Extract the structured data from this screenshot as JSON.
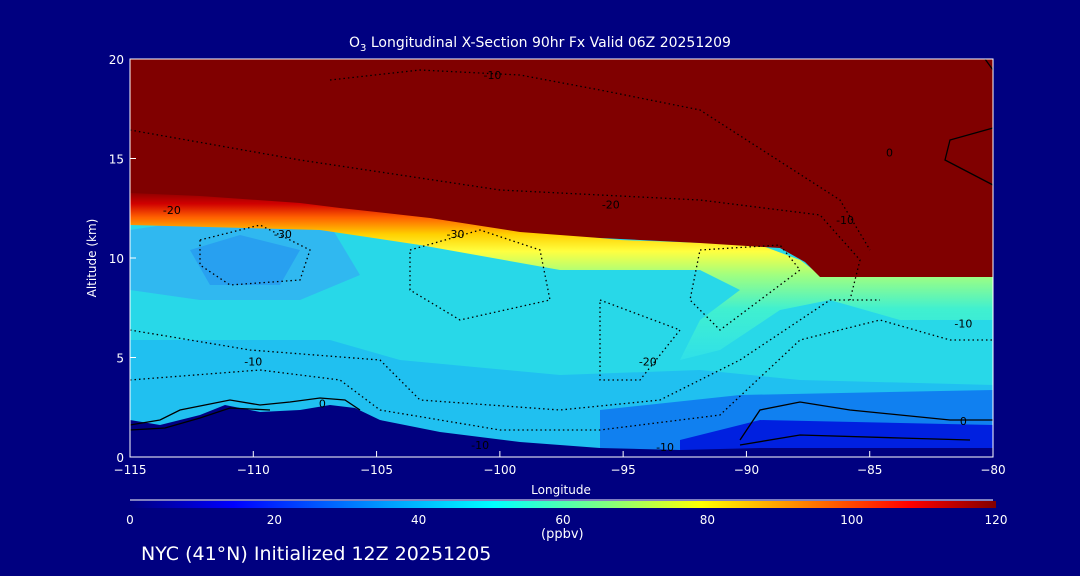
{
  "chart_data": {
    "type": "heatmap",
    "title_prefix": "O",
    "title_subscript": "3",
    "title_rest": " Longitudinal X-Section 90hr  Fx Valid 06Z 20251209",
    "xlabel": "Longitude",
    "ylabel": "Altitude (km)",
    "xlim": [
      -115,
      -80
    ],
    "ylim": [
      0,
      20
    ],
    "xticks": [
      -115,
      -110,
      -105,
      -100,
      -95,
      -90,
      -85,
      -80
    ],
    "yticks": [
      0,
      5,
      10,
      15,
      20
    ],
    "colorbar": {
      "label": "(ppbv)",
      "range": [
        0,
        120
      ],
      "ticks": [
        0,
        20,
        40,
        60,
        80,
        100,
        120
      ],
      "colors": [
        "#000080",
        "#0000ff",
        "#00a0ff",
        "#00ffff",
        "#80ff80",
        "#ffff00",
        "#ff8000",
        "#ff0000",
        "#800000"
      ]
    },
    "contour_labels": [
      {
        "lon": -100.3,
        "alt": 19.2,
        "value": "-10"
      },
      {
        "lon": -113.3,
        "alt": 12.4,
        "value": "-20"
      },
      {
        "lon": -108.8,
        "alt": 11.2,
        "value": "-30"
      },
      {
        "lon": -101.8,
        "alt": 11.2,
        "value": "-30"
      },
      {
        "lon": -95.5,
        "alt": 12.7,
        "value": "-20"
      },
      {
        "lon": -86.0,
        "alt": 11.9,
        "value": "-10"
      },
      {
        "lon": -84.2,
        "alt": 15.3,
        "value": "0"
      },
      {
        "lon": -81.2,
        "alt": 6.7,
        "value": "-10"
      },
      {
        "lon": -110.0,
        "alt": 4.8,
        "value": "-10"
      },
      {
        "lon": -94.0,
        "alt": 4.8,
        "value": "-20"
      },
      {
        "lon": -107.2,
        "alt": 2.7,
        "value": "0"
      },
      {
        "lon": -100.8,
        "alt": 0.6,
        "value": "-10"
      },
      {
        "lon": -93.3,
        "alt": 0.5,
        "value": "-10"
      },
      {
        "lon": -81.2,
        "alt": 1.8,
        "value": "0"
      }
    ]
  },
  "footer": "NYC (41°N) Initialized 12Z 20251205"
}
